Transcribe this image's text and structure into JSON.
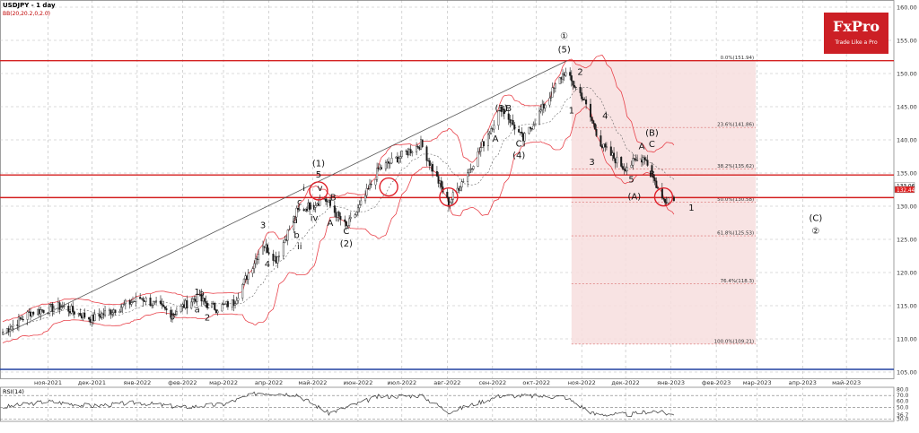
{
  "header": {
    "title": "USDJPY - 1 day",
    "indicator": "BB(20,20.2,0,2.0)"
  },
  "logo": {
    "brand": "FxPro",
    "tagline": "Trade Like a Pro",
    "color": "#cc1f25"
  },
  "colors": {
    "candle": "#1a1a1a",
    "bollinger": "#e8434b",
    "level_line": "#d42020",
    "fib_shade": "#f7dede",
    "trend_line": "#555555",
    "blue_line": "#2040a0",
    "rsi_line": "#333333",
    "grid": "#b8b8b8",
    "axis_text": "#333333"
  },
  "chart_data": [
    {
      "type": "candlestick",
      "title": "USDJPY - 1 day",
      "x_tick_labels": [
        "ноя-2021",
        "дек-2021",
        "янв-2022",
        "фев-2022",
        "мар-2022",
        "апр-2022",
        "май-2022",
        "июн-2022",
        "июл-2022",
        "авг-2022",
        "сен-2022",
        "окт-2022",
        "ноя-2022",
        "дек-2022",
        "янв-2023",
        "фев-2023",
        "мар-2023",
        "апр-2023",
        "май-2023"
      ],
      "y_tick_labels": [
        "105.00",
        "110.00",
        "115.00",
        "120.00",
        "125.00",
        "130.00",
        "135.00",
        "140.00",
        "145.00",
        "150.00",
        "155.00",
        "160.00"
      ],
      "ylim": [
        104,
        161
      ],
      "grid": true,
      "price_path": {
        "x": [
          "2021-10-01",
          "2021-10-20",
          "2021-11-10",
          "2021-12-01",
          "2021-12-20",
          "2022-01-04",
          "2022-01-25",
          "2022-02-10",
          "2022-02-24",
          "2022-03-08",
          "2022-03-28",
          "2022-04-06",
          "2022-04-20",
          "2022-05-09",
          "2022-05-24",
          "2022-06-02",
          "2022-06-15",
          "2022-07-14",
          "2022-08-02",
          "2022-08-20",
          "2022-09-07",
          "2022-09-22",
          "2022-10-20",
          "2022-11-01",
          "2022-11-15",
          "2022-11-30",
          "2022-12-14",
          "2022-12-26",
          "2023-01-03"
        ],
        "close": [
          111.0,
          114.0,
          114.9,
          113.0,
          114.8,
          116.2,
          113.8,
          116.2,
          114.6,
          115.5,
          124.3,
          122.0,
          129.1,
          131.2,
          126.8,
          129.8,
          135.5,
          139.4,
          130.4,
          137.0,
          144.9,
          140.0,
          150.2,
          146.7,
          139.0,
          135.8,
          137.5,
          131.0,
          131.5
        ]
      },
      "horizontal_levels": [
        151.94,
        134.7,
        131.3
      ],
      "fibonacci": {
        "high": 151.94,
        "low": 109.21,
        "levels": [
          {
            "label": "0.0%(151.94)",
            "value": 151.94
          },
          {
            "label": "23.6%(141.86)",
            "value": 141.86
          },
          {
            "label": "38.2%(135.62)",
            "value": 135.62
          },
          {
            "label": "50.0%(130.58)",
            "value": 130.58
          },
          {
            "label": "61.8%(125.53)",
            "value": 125.53
          },
          {
            "label": "76.4%(118.3)",
            "value": 118.3
          },
          {
            "label": "100.0%(109.21)",
            "value": 109.21
          }
        ]
      },
      "current_price_labels": [
        "133.06",
        "132.44"
      ],
      "wave_labels": [
        {
          "text": "①",
          "x": "2022-10-20",
          "y": 155.2
        },
        {
          "text": "(5)",
          "x": "2022-10-20",
          "y": 153.2
        },
        {
          "text": "(3)",
          "x": "2022-09-07",
          "y": 144.3
        },
        {
          "text": "B",
          "x": "2022-09-12",
          "y": 144.3
        },
        {
          "text": "A",
          "x": "2022-09-03",
          "y": 139.7
        },
        {
          "text": "C",
          "x": "2022-09-19",
          "y": 139.0
        },
        {
          "text": "(4)",
          "x": "2022-09-19",
          "y": 137.2
        },
        {
          "text": "2",
          "x": "2022-10-31",
          "y": 149.8
        },
        {
          "text": "1",
          "x": "2022-10-25",
          "y": 144.0
        },
        {
          "text": "4",
          "x": "2022-11-17",
          "y": 143.2
        },
        {
          "text": "3",
          "x": "2022-11-08",
          "y": 136.2
        },
        {
          "text": "(B)",
          "x": "2022-12-19",
          "y": 140.6
        },
        {
          "text": "A",
          "x": "2022-12-12",
          "y": 138.6
        },
        {
          "text": "C",
          "x": "2022-12-19",
          "y": 138.9
        },
        {
          "text": "5",
          "x": "2022-12-05",
          "y": 133.6
        },
        {
          "text": "B",
          "x": "2022-12-19",
          "y": 134.4
        },
        {
          "text": "(A)",
          "x": "2022-12-07",
          "y": 131.0
        },
        {
          "text": "1",
          "x": "2023-01-15",
          "y": 129.3
        },
        {
          "text": "(C)",
          "x": "2023-04-10",
          "y": 127.8
        },
        {
          "text": "②",
          "x": "2023-04-10",
          "y": 125.8
        },
        {
          "text": "(1)",
          "x": "2022-05-05",
          "y": 136.0
        },
        {
          "text": "5",
          "x": "2022-05-05",
          "y": 134.3
        },
        {
          "text": "B",
          "x": "2022-05-15",
          "y": 130.9
        },
        {
          "text": "A",
          "x": "2022-05-13",
          "y": 127.0
        },
        {
          "text": "C",
          "x": "2022-05-24",
          "y": 125.8
        },
        {
          "text": "(2)",
          "x": "2022-05-24",
          "y": 123.9
        },
        {
          "text": "3",
          "x": "2022-03-28",
          "y": 126.7
        },
        {
          "text": "4",
          "x": "2022-03-31",
          "y": 120.8
        },
        {
          "text": "1",
          "x": "2022-02-11",
          "y": 116.6
        },
        {
          "text": "b",
          "x": "2022-02-14",
          "y": 116.4
        },
        {
          "text": "a",
          "x": "2022-02-11",
          "y": 114.0
        },
        {
          "text": "c",
          "x": "2022-02-18",
          "y": 114.6
        },
        {
          "text": "2",
          "x": "2022-02-18",
          "y": 112.8
        },
        {
          "text": "0",
          "x": "2022-01-25",
          "y": 112.9
        },
        {
          "text": "i",
          "x": "2022-04-25",
          "y": 132.3
        },
        {
          "text": "v",
          "x": "2022-05-06",
          "y": 132.3
        },
        {
          "text": "c",
          "x": "2022-04-22",
          "y": 130.2
        },
        {
          "text": "a",
          "x": "2022-04-19",
          "y": 127.4
        },
        {
          "text": "b",
          "x": "2022-04-20",
          "y": 125.2
        },
        {
          "text": "ii",
          "x": "2022-04-22",
          "y": 123.5
        },
        {
          "text": "iii",
          "x": "2022-04-30",
          "y": 129.5
        },
        {
          "text": "iv",
          "x": "2022-05-02",
          "y": 127.8
        }
      ],
      "highlight_circles": [
        {
          "x": "2022-05-05",
          "y": 132.3
        },
        {
          "x": "2022-06-22",
          "y": 132.9
        },
        {
          "x": "2022-08-02",
          "y": 131.4
        },
        {
          "x": "2022-12-27",
          "y": 131.4
        }
      ]
    },
    {
      "type": "line",
      "title": "RSI(14)",
      "y_tick_labels": [
        "80.0",
        "70.0",
        "60.0",
        "50.0",
        "36.7",
        "30.0"
      ],
      "ylim": [
        26,
        84
      ],
      "reference_levels": [
        70,
        50,
        30
      ],
      "x": [
        "2021-10-01",
        "2021-11-01",
        "2021-12-01",
        "2022-01-01",
        "2022-02-01",
        "2022-03-01",
        "2022-03-25",
        "2022-04-20",
        "2022-05-12",
        "2022-06-15",
        "2022-07-14",
        "2022-08-02",
        "2022-09-07",
        "2022-10-20",
        "2022-11-10",
        "2022-12-05",
        "2022-12-20",
        "2023-01-03"
      ],
      "values": [
        50,
        60,
        52,
        58,
        50,
        55,
        75,
        72,
        40,
        68,
        70,
        42,
        70,
        68,
        38,
        38,
        44,
        36.7
      ],
      "last_value_label": "36.7"
    }
  ]
}
